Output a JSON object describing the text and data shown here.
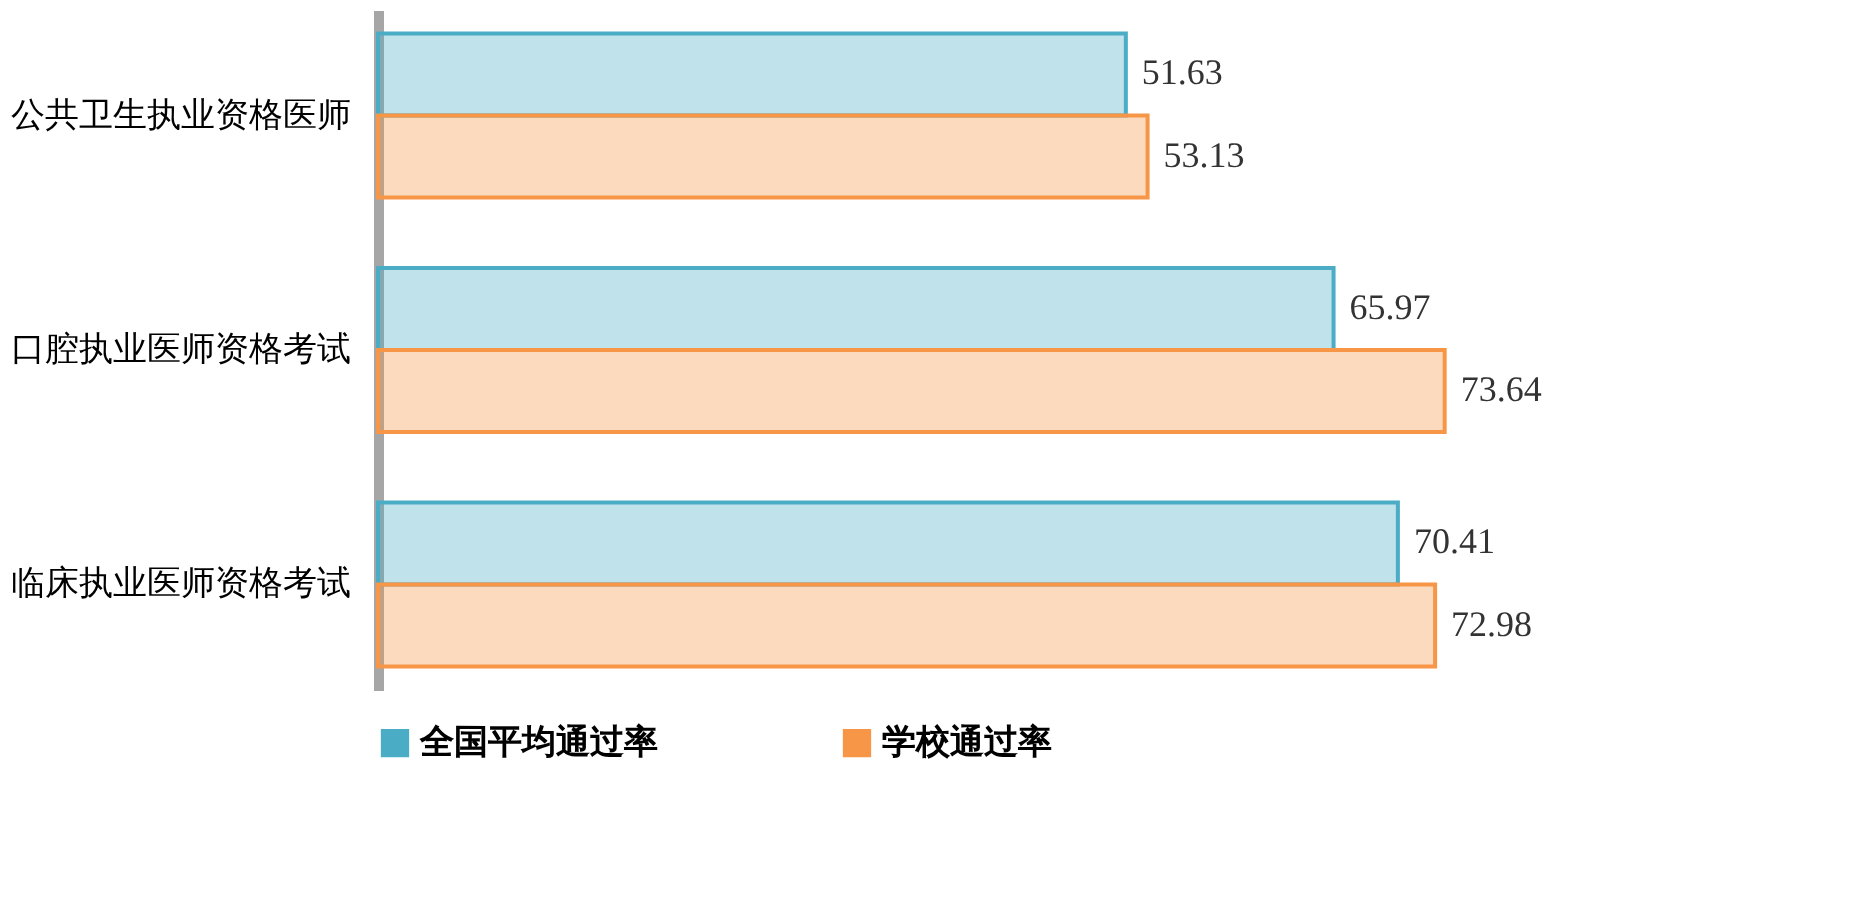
{
  "chart_data": {
    "type": "bar",
    "orientation": "horizontal",
    "categories": [
      "公共卫生执业资格医师",
      "口腔执业医师资格考试",
      "临床执业医师资格考试"
    ],
    "series": [
      {
        "name": "全国平均通过率",
        "color": "#4bacc6",
        "values": [
          51.63,
          65.97,
          70.41
        ]
      },
      {
        "name": "学校通过率",
        "color": "#f79646",
        "values": [
          53.13,
          73.64,
          72.98
        ]
      }
    ],
    "data_labels": true,
    "legend": "bottom",
    "tick_labels": "y",
    "grid": false
  }
}
